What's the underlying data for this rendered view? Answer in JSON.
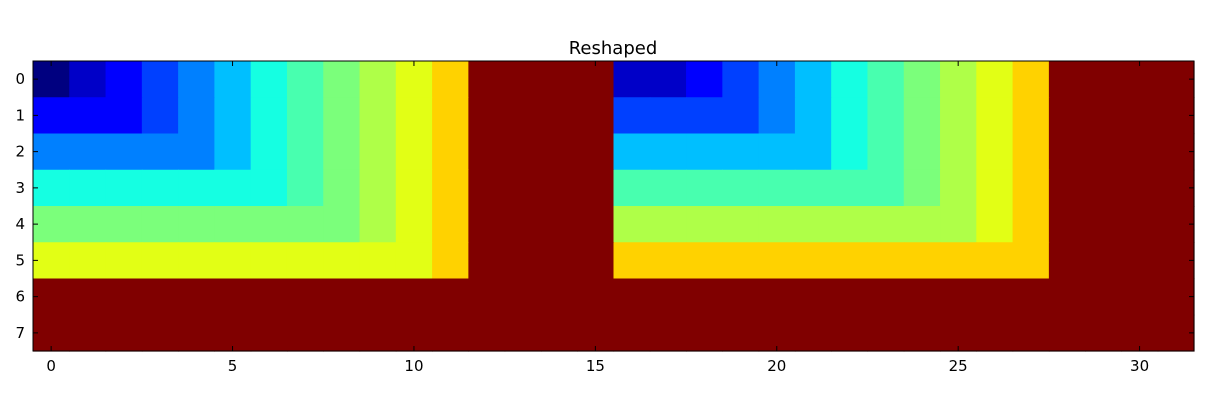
{
  "chart_data": {
    "type": "heatmap",
    "title": "Reshaped",
    "xlabel": "",
    "ylabel": "",
    "colormap": "jet",
    "vmin": 0,
    "vmax": 16,
    "xlim": [
      -0.5,
      31.5
    ],
    "ylim": [
      7.5,
      -0.5
    ],
    "xticks": [
      0,
      5,
      10,
      15,
      20,
      25,
      30
    ],
    "yticks": [
      0,
      1,
      2,
      3,
      4,
      5,
      6,
      7
    ],
    "grid": false,
    "values": [
      [
        0,
        1,
        2,
        3,
        4,
        5,
        6,
        7,
        8,
        9,
        10,
        11,
        16,
        16,
        16,
        16,
        1,
        1,
        2,
        3,
        4,
        5,
        6,
        7,
        8,
        9,
        10,
        11,
        16,
        16,
        16,
        16
      ],
      [
        2,
        2,
        2,
        3,
        4,
        5,
        6,
        7,
        8,
        9,
        10,
        11,
        16,
        16,
        16,
        16,
        3,
        3,
        3,
        3,
        4,
        5,
        6,
        7,
        8,
        9,
        10,
        11,
        16,
        16,
        16,
        16
      ],
      [
        4,
        4,
        4,
        4,
        4,
        5,
        6,
        7,
        8,
        9,
        10,
        11,
        16,
        16,
        16,
        16,
        5,
        5,
        5,
        5,
        5,
        5,
        6,
        7,
        8,
        9,
        10,
        11,
        16,
        16,
        16,
        16
      ],
      [
        6,
        6,
        6,
        6,
        6,
        6,
        6,
        7,
        8,
        9,
        10,
        11,
        16,
        16,
        16,
        16,
        7,
        7,
        7,
        7,
        7,
        7,
        7,
        7,
        8,
        9,
        10,
        11,
        16,
        16,
        16,
        16
      ],
      [
        8,
        8,
        8,
        8,
        8,
        8,
        8,
        8,
        8,
        9,
        10,
        11,
        16,
        16,
        16,
        16,
        9,
        9,
        9,
        9,
        9,
        9,
        9,
        9,
        9,
        9,
        10,
        11,
        16,
        16,
        16,
        16
      ],
      [
        10,
        10,
        10,
        10,
        10,
        10,
        10,
        10,
        10,
        10,
        10,
        11,
        16,
        16,
        16,
        16,
        11,
        11,
        11,
        11,
        11,
        11,
        11,
        11,
        11,
        11,
        11,
        11,
        16,
        16,
        16,
        16
      ],
      [
        16,
        16,
        16,
        16,
        16,
        16,
        16,
        16,
        16,
        16,
        16,
        16,
        16,
        16,
        16,
        16,
        16,
        16,
        16,
        16,
        16,
        16,
        16,
        16,
        16,
        16,
        16,
        16,
        16,
        16,
        16,
        16
      ],
      [
        16,
        16,
        16,
        16,
        16,
        16,
        16,
        16,
        16,
        16,
        16,
        16,
        16,
        16,
        16,
        16,
        16,
        16,
        16,
        16,
        16,
        16,
        16,
        16,
        16,
        16,
        16,
        16,
        16,
        16,
        16,
        16
      ]
    ]
  }
}
